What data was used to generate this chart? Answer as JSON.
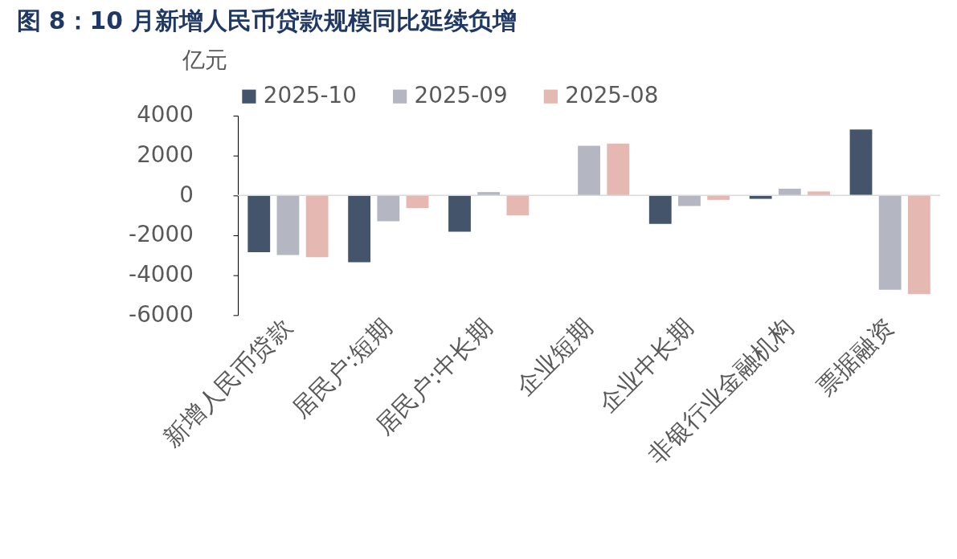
{
  "chart_data": {
    "type": "bar",
    "title": "图 8：10 月新增人民币贷款规模同比延续负增",
    "ylabel": "亿元",
    "categories": [
      "新增人民币贷款",
      "居民户:短期",
      "居民户:中长期",
      "企业短期",
      "企业中长期",
      "非银行业金融机构",
      "票据融资"
    ],
    "series": [
      {
        "name": "2025-10",
        "color": "#44546a",
        "values": [
          -2840,
          -3350,
          -1820,
          null,
          -1430,
          -170,
          3310
        ]
      },
      {
        "name": "2025-09",
        "color": "#b4b7c2",
        "values": [
          -2990,
          -1290,
          170,
          2490,
          -530,
          340,
          -4730
        ]
      },
      {
        "name": "2025-08",
        "color": "#e6b8b2",
        "values": [
          -3100,
          -630,
          -1000,
          2600,
          -220,
          200,
          -4950
        ]
      }
    ],
    "ylim": [
      -6000,
      4000
    ],
    "yticks": [
      -6000,
      -4000,
      -2000,
      0,
      2000,
      4000
    ],
    "ref_lines": [
      {
        "axis": "y",
        "value": 0,
        "color": "#d9d9d9"
      }
    ],
    "grid": false,
    "legend": "top"
  }
}
